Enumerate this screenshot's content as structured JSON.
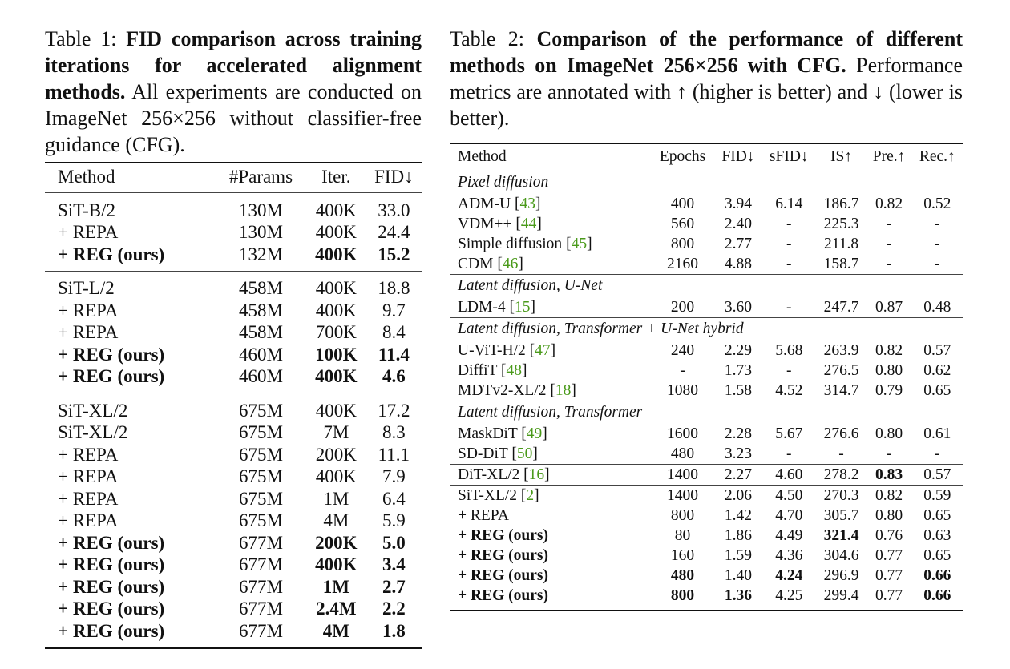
{
  "table1": {
    "caption_label": "Table 1: ",
    "caption_bold": "FID comparison across training iterations for accelerated alignment methods.",
    "caption_rest": " All experiments are conducted on ImageNet 256×256 without classifier-free guidance (CFG).",
    "headers": [
      "Method",
      "#Params",
      "Iter.",
      "FID↓"
    ],
    "groups": [
      [
        {
          "method": "SiT-B/2",
          "params": "130M",
          "iter": "400K",
          "fid": "33.0",
          "bold_method": false,
          "bold_iter": false,
          "bold_fid": false
        },
        {
          "method": "+ REPA",
          "params": "130M",
          "iter": "400K",
          "fid": "24.4",
          "bold_method": false,
          "bold_iter": false,
          "bold_fid": false
        },
        {
          "method": "+ REG (ours)",
          "params": "132M",
          "iter": "400K",
          "fid": "15.2",
          "bold_method": true,
          "bold_iter": true,
          "bold_fid": true
        }
      ],
      [
        {
          "method": "SiT-L/2",
          "params": "458M",
          "iter": "400K",
          "fid": "18.8",
          "bold_method": false,
          "bold_iter": false,
          "bold_fid": false
        },
        {
          "method": "+ REPA",
          "params": "458M",
          "iter": "400K",
          "fid": "9.7",
          "bold_method": false,
          "bold_iter": false,
          "bold_fid": false
        },
        {
          "method": "+ REPA",
          "params": "458M",
          "iter": "700K",
          "fid": "8.4",
          "bold_method": false,
          "bold_iter": false,
          "bold_fid": false
        },
        {
          "method": "+ REG (ours)",
          "params": "460M",
          "iter": "100K",
          "fid": "11.4",
          "bold_method": true,
          "bold_iter": true,
          "bold_fid": true
        },
        {
          "method": "+ REG (ours)",
          "params": "460M",
          "iter": "400K",
          "fid": "4.6",
          "bold_method": true,
          "bold_iter": true,
          "bold_fid": true
        }
      ],
      [
        {
          "method": "SiT-XL/2",
          "params": "675M",
          "iter": "400K",
          "fid": "17.2",
          "bold_method": false,
          "bold_iter": false,
          "bold_fid": false
        },
        {
          "method": "SiT-XL/2",
          "params": "675M",
          "iter": "7M",
          "fid": "8.3",
          "bold_method": false,
          "bold_iter": false,
          "bold_fid": false
        },
        {
          "method": "+ REPA",
          "params": "675M",
          "iter": "200K",
          "fid": "11.1",
          "bold_method": false,
          "bold_iter": false,
          "bold_fid": false
        },
        {
          "method": "+ REPA",
          "params": "675M",
          "iter": "400K",
          "fid": "7.9",
          "bold_method": false,
          "bold_iter": false,
          "bold_fid": false
        },
        {
          "method": "+ REPA",
          "params": "675M",
          "iter": "1M",
          "fid": "6.4",
          "bold_method": false,
          "bold_iter": false,
          "bold_fid": false
        },
        {
          "method": "+ REPA",
          "params": "675M",
          "iter": "4M",
          "fid": "5.9",
          "bold_method": false,
          "bold_iter": false,
          "bold_fid": false
        },
        {
          "method": "+ REG (ours)",
          "params": "677M",
          "iter": "200K",
          "fid": "5.0",
          "bold_method": true,
          "bold_iter": true,
          "bold_fid": true
        },
        {
          "method": "+ REG (ours)",
          "params": "677M",
          "iter": "400K",
          "fid": "3.4",
          "bold_method": true,
          "bold_iter": true,
          "bold_fid": true
        },
        {
          "method": "+ REG (ours)",
          "params": "677M",
          "iter": "1M",
          "fid": "2.7",
          "bold_method": true,
          "bold_iter": true,
          "bold_fid": true
        },
        {
          "method": "+ REG (ours)",
          "params": "677M",
          "iter": "2.4M",
          "fid": "2.2",
          "bold_method": true,
          "bold_iter": true,
          "bold_fid": true
        },
        {
          "method": "+ REG (ours)",
          "params": "677M",
          "iter": "4M",
          "fid": "1.8",
          "bold_method": true,
          "bold_iter": true,
          "bold_fid": true
        }
      ]
    ]
  },
  "table2": {
    "caption_label": "Table 2: ",
    "caption_bold": "Comparison of the performance of different methods on ImageNet 256×256 with CFG.",
    "caption_rest": " Performance metrics are annotated with ↑ (higher is better) and ↓ (lower is better).",
    "headers": [
      "Method",
      "Epochs",
      "FID↓",
      "sFID↓",
      "IS↑",
      "Pre.↑",
      "Rec.↑"
    ],
    "groups": [
      {
        "name": "Pixel diffusion",
        "rows": [
          {
            "cells": [
              "ADM-U",
              "400",
              "3.94",
              "6.14",
              "186.7",
              "0.82",
              "0.52"
            ],
            "cite": "43",
            "bold": []
          },
          {
            "cells": [
              "VDM++",
              "560",
              "2.40",
              "-",
              "225.3",
              "-",
              "-"
            ],
            "cite": "44",
            "bold": []
          },
          {
            "cells": [
              "Simple diffusion",
              "800",
              "2.77",
              "-",
              "211.8",
              "-",
              "-"
            ],
            "cite": "45",
            "bold": []
          },
          {
            "cells": [
              "CDM",
              "2160",
              "4.88",
              "-",
              "158.7",
              "-",
              "-"
            ],
            "cite": "46",
            "bold": []
          }
        ]
      },
      {
        "name": "Latent diffusion, U-Net",
        "rows": [
          {
            "cells": [
              "LDM-4",
              "200",
              "3.60",
              "-",
              "247.7",
              "0.87",
              "0.48"
            ],
            "cite": "15",
            "bold": []
          }
        ]
      },
      {
        "name": "Latent diffusion, Transformer + U-Net hybrid",
        "rows": [
          {
            "cells": [
              "U-ViT-H/2",
              "240",
              "2.29",
              "5.68",
              "263.9",
              "0.82",
              "0.57"
            ],
            "cite": "47",
            "bold": []
          },
          {
            "cells": [
              "DiffiT",
              "-",
              "1.73",
              "-",
              "276.5",
              "0.80",
              "0.62"
            ],
            "cite": "48",
            "bold": []
          },
          {
            "cells": [
              "MDTv2-XL/2",
              "1080",
              "1.58",
              "4.52",
              "314.7",
              "0.79",
              "0.65"
            ],
            "cite": "18",
            "bold": []
          }
        ]
      },
      {
        "name": "Latent diffusion, Transformer",
        "rows": [
          {
            "cells": [
              "MaskDiT",
              "1600",
              "2.28",
              "5.67",
              "276.6",
              "0.80",
              "0.61"
            ],
            "cite": "49",
            "bold": []
          },
          {
            "cells": [
              "SD-DiT",
              "480",
              "3.23",
              "-",
              "-",
              "-",
              "-"
            ],
            "cite": "50",
            "bold": []
          }
        ]
      },
      {
        "name": "",
        "rows": [
          {
            "cells": [
              "DiT-XL/2",
              "1400",
              "2.27",
              "4.60",
              "278.2",
              "0.83",
              "0.57"
            ],
            "cite": "16",
            "bold": [
              5
            ]
          }
        ]
      },
      {
        "name": "",
        "rows": [
          {
            "cells": [
              "SiT-XL/2",
              "1400",
              "2.06",
              "4.50",
              "270.3",
              "0.82",
              "0.59"
            ],
            "cite": "2",
            "bold": []
          },
          {
            "cells": [
              "+ REPA",
              "800",
              "1.42",
              "4.70",
              "305.7",
              "0.80",
              "0.65"
            ],
            "cite": "",
            "bold": []
          },
          {
            "cells": [
              "+ REG (ours)",
              "80",
              "1.86",
              "4.49",
              "321.4",
              "0.76",
              "0.63"
            ],
            "cite": "",
            "bold": [
              0,
              4
            ]
          },
          {
            "cells": [
              "+ REG (ours)",
              "160",
              "1.59",
              "4.36",
              "304.6",
              "0.77",
              "0.65"
            ],
            "cite": "",
            "bold": [
              0
            ]
          },
          {
            "cells": [
              "+ REG (ours)",
              "480",
              "1.40",
              "4.24",
              "296.9",
              "0.77",
              "0.66"
            ],
            "cite": "",
            "bold": [
              0,
              1,
              3,
              6
            ]
          },
          {
            "cells": [
              "+ REG (ours)",
              "800",
              "1.36",
              "4.25",
              "299.4",
              "0.77",
              "0.66"
            ],
            "cite": "",
            "bold": [
              0,
              1,
              2,
              6
            ]
          }
        ]
      }
    ]
  }
}
